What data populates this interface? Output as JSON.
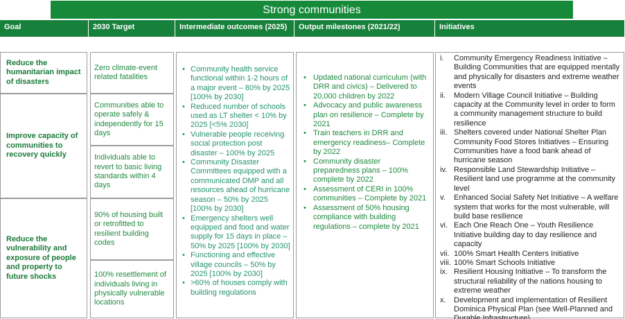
{
  "title": "Strong communities",
  "headers": [
    "Goal",
    "2030 Target",
    "Intermediate outcomes (2025)",
    "Output milestones (2021/22)",
    "Initiatives"
  ],
  "goals": [
    "Reduce the humanitarian impact of disasters",
    "Improve capacity of communities to recovery quickly",
    "Reduce the vulnerability and exposure of people and property to future shocks"
  ],
  "targets": [
    "Zero climate-event related fatalities",
    "Communities able to operate safely & independently for 15 days",
    "Individuals able to revert to basic living standards within 4 days",
    "90% of housing built or retrofitted to resilient building codes",
    "100% resettlement of individuals living in physically vulnerable locations"
  ],
  "outcomes": [
    "Community health service functional within 1-2 hours of a major event – 80% by 2025 [100% by 2030]",
    "Reduced number of schools used as LT shelter < 10% by 2025 [<5% 2030]",
    "Vulnerable people receiving social protection post disaster – 100% by 2025",
    "Community Disaster Committees equipped with a communicated DMP and all resources ahead of hurricane season – 50% by 2025 [100% by 2030]",
    "Emergency shelters well equipped and food and water supply for 15 days in place – 50% by 2025 [100% by 2030]",
    "Functioning and effective village councils – 50% by 2025 [100% by 2030]",
    ">60% of houses comply with building regulations"
  ],
  "milestones": [
    "Updated national curriculum (with DRR and civics) – Delivered to 20,000 children by 2022",
    "Advocacy and public awareness plan on resilience – Complete by 2021",
    "Train teachers in DRR and emergency readiness– Complete by 2022",
    "Community disaster preparedness plans – 100% complete by 2022",
    "Assessment of CERI in 100% communities – Complete by 2021",
    "Assessment of 50% housing compliance with building regulations – complete by 2021"
  ],
  "initiatives": [
    {
      "numeral": "i.",
      "text": "Community Emergency Readiness Initiative – Building Communities that are equipped mentally and physically for disasters and extreme weather events"
    },
    {
      "numeral": "ii.",
      "text": "Modern Village Council Initiative – Building capacity at the Community level in order to form a community management structure to build resilience"
    },
    {
      "numeral": "iii.",
      "text": "Shelters covered under National Shelter Plan Community Food Stores Initiatives – Ensuring Communities have a food bank ahead of hurricane season"
    },
    {
      "numeral": "iv.",
      "text": "Responsible Land Stewardship Initiative – Resilient land use programme at the community level"
    },
    {
      "numeral": "v.",
      "text": "Enhanced Social Safety Net Initiative – A welfare system that works for the most vulnerable, will build base resilience"
    },
    {
      "numeral": "vi.",
      "text": "Each One Reach One – Youth Resilience Initiative building day to day resilience and capacity"
    },
    {
      "numeral": "vii.",
      "text": "100% Smart Health Centers Initiative"
    },
    {
      "numeral": "viii.",
      "text": "100% Smart Schools Initiative"
    },
    {
      "numeral": "ix.",
      "text": "Resilient Housing Initiative – To transform the structural reliability of the nations housing to extreme weather"
    },
    {
      "numeral": "x.",
      "text": "Development and implementation of Resilient Dominica Physical Plan (see Well-Planned and Durable Infrastructure)"
    }
  ]
}
